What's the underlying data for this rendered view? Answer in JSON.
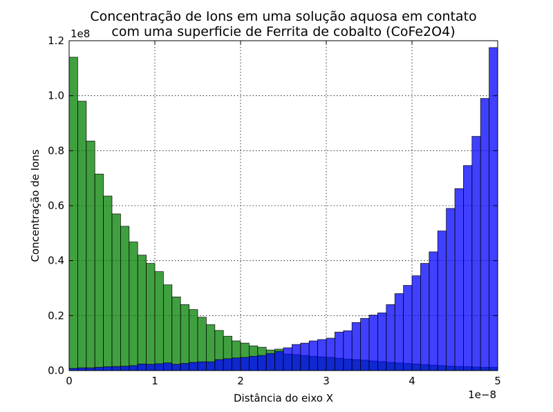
{
  "chart_data": {
    "type": "bar",
    "title": "Concentração de Ions em uma solução aquosa em contato\ncom uma superficie de Ferrita de cobalto (CoFe2O4)",
    "xlabel": "Distância do eixo X",
    "ylabel": "Concentração de Ions",
    "x_offset_text": "1e−8",
    "y_offset_text": "1e8",
    "xlim": [
      0,
      5
    ],
    "ylim": [
      0,
      1.2
    ],
    "x_ticks": [
      0,
      1,
      2,
      3,
      4,
      5
    ],
    "x_tick_labels": [
      "0",
      "1",
      "2",
      "3",
      "4",
      "5"
    ],
    "y_ticks": [
      0,
      0.2,
      0.4,
      0.6,
      0.8,
      1.0,
      1.2
    ],
    "y_tick_labels": [
      "0.0",
      "0.2",
      "0.4",
      "0.6",
      "0.8",
      "1.0",
      "1.2"
    ],
    "grid": true,
    "bin_width": 0.1,
    "bin_starts": [
      0.0,
      0.1,
      0.2,
      0.3,
      0.4,
      0.5,
      0.6,
      0.7,
      0.8,
      0.9,
      1.0,
      1.1,
      1.2,
      1.3,
      1.4,
      1.5,
      1.6,
      1.7,
      1.8,
      1.9,
      2.0,
      2.1,
      2.2,
      2.3,
      2.4,
      2.5,
      2.6,
      2.7,
      2.8,
      2.9,
      3.0,
      3.1,
      3.2,
      3.3,
      3.4,
      3.5,
      3.6,
      3.7,
      3.8,
      3.9,
      4.0,
      4.1,
      4.2,
      4.3,
      4.4,
      4.5,
      4.6,
      4.7,
      4.8,
      4.9
    ],
    "series": [
      {
        "color": "#008000",
        "values": [
          1.14,
          0.98,
          0.835,
          0.715,
          0.635,
          0.57,
          0.525,
          0.468,
          0.42,
          0.39,
          0.36,
          0.312,
          0.268,
          0.24,
          0.222,
          0.194,
          0.167,
          0.146,
          0.125,
          0.108,
          0.1,
          0.09,
          0.085,
          0.075,
          0.078,
          0.06,
          0.058,
          0.055,
          0.052,
          0.05,
          0.048,
          0.045,
          0.042,
          0.04,
          0.038,
          0.035,
          0.033,
          0.03,
          0.028,
          0.026,
          0.024,
          0.022,
          0.02,
          0.018,
          0.016,
          0.015,
          0.014,
          0.013,
          0.012,
          0.012
        ]
      },
      {
        "color": "#0000ff",
        "values": [
          0.008,
          0.01,
          0.01,
          0.012,
          0.014,
          0.015,
          0.016,
          0.018,
          0.024,
          0.023,
          0.025,
          0.028,
          0.023,
          0.026,
          0.03,
          0.032,
          0.032,
          0.04,
          0.043,
          0.046,
          0.048,
          0.052,
          0.055,
          0.062,
          0.07,
          0.083,
          0.095,
          0.1,
          0.108,
          0.113,
          0.118,
          0.14,
          0.145,
          0.175,
          0.19,
          0.202,
          0.21,
          0.24,
          0.28,
          0.31,
          0.345,
          0.39,
          0.432,
          0.508,
          0.59,
          0.662,
          0.746,
          0.852,
          0.99,
          1.175
        ]
      }
    ]
  }
}
